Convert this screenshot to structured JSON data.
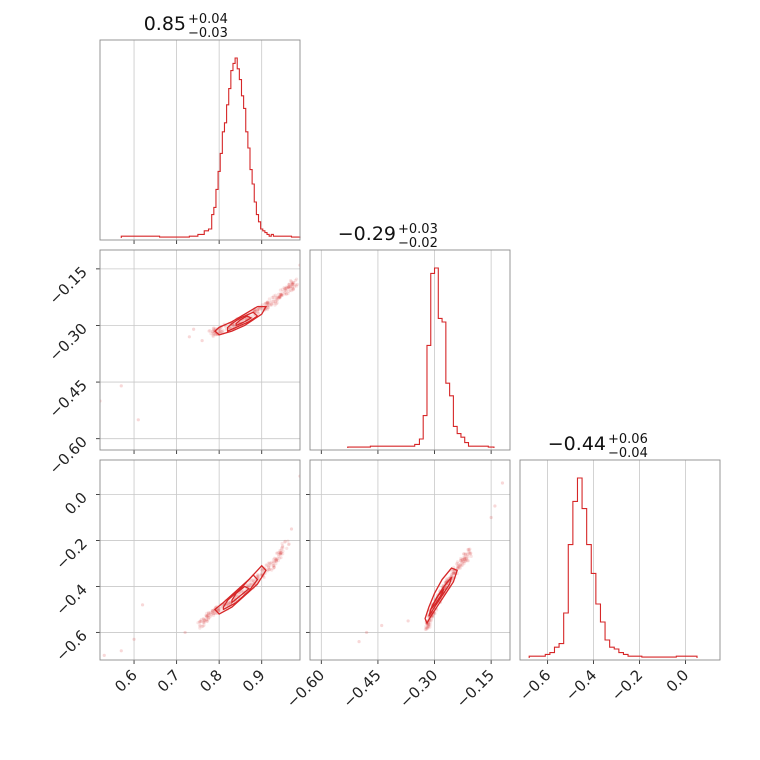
{
  "chart_data": {
    "type": "corner",
    "color": "#d62728",
    "parameters": [
      {
        "range": [
          0.52,
          0.99
        ],
        "ticks": [
          0.6,
          0.7,
          0.8,
          0.9
        ],
        "tick_labels": [
          "0.6",
          "0.7",
          "0.8",
          "0.9"
        ],
        "title": {
          "median": "0.85",
          "plus": "+0.04",
          "minus": "−0.03"
        },
        "hist": {
          "centers": [
            0.58,
            0.6,
            0.62,
            0.7,
            0.72,
            0.74,
            0.76,
            0.77,
            0.78,
            0.785,
            0.79,
            0.795,
            0.8,
            0.805,
            0.81,
            0.815,
            0.82,
            0.825,
            0.83,
            0.835,
            0.84,
            0.845,
            0.85,
            0.855,
            0.86,
            0.865,
            0.87,
            0.875,
            0.88,
            0.885,
            0.89,
            0.895,
            0.9,
            0.905,
            0.91,
            0.915,
            0.92,
            0.925,
            0.93,
            0.94,
            0.96,
            0.98
          ],
          "values": [
            0.01,
            0.01,
            0.01,
            0.005,
            0.005,
            0.01,
            0.02,
            0.04,
            0.05,
            0.13,
            0.17,
            0.27,
            0.37,
            0.47,
            0.59,
            0.64,
            0.74,
            0.83,
            0.93,
            0.97,
            1.0,
            0.94,
            0.88,
            0.79,
            0.72,
            0.59,
            0.5,
            0.38,
            0.3,
            0.2,
            0.13,
            0.09,
            0.05,
            0.04,
            0.03,
            0.02,
            0.01,
            0.02,
            0.01,
            0.01,
            0.01,
            0.005
          ]
        }
      },
      {
        "range": [
          -0.63,
          -0.1
        ],
        "ticks": [
          -0.6,
          -0.45,
          -0.3,
          -0.15
        ],
        "tick_labels": [
          "−0.60",
          "−0.45",
          "−0.30",
          "−0.15"
        ],
        "title": {
          "median": "−0.29",
          "plus": "+0.03",
          "minus": "−0.02"
        },
        "hist": {
          "centers": [
            -0.5,
            -0.44,
            -0.36,
            -0.345,
            -0.335,
            -0.325,
            -0.315,
            -0.305,
            -0.295,
            -0.285,
            -0.275,
            -0.265,
            -0.255,
            -0.245,
            -0.235,
            -0.225,
            -0.215,
            -0.205,
            -0.185,
            -0.165,
            -0.15
          ],
          "values": [
            0.005,
            0.01,
            0.01,
            0.02,
            0.05,
            0.18,
            0.57,
            0.97,
            1.0,
            0.72,
            0.7,
            0.36,
            0.29,
            0.12,
            0.08,
            0.06,
            0.03,
            0.01,
            0.01,
            0.01,
            0.005
          ]
        }
      },
      {
        "range": [
          -0.72,
          0.15
        ],
        "ticks": [
          -0.6,
          -0.4,
          -0.2,
          0.0
        ],
        "tick_labels": [
          "−0.6",
          "−0.4",
          "−0.2",
          "0.0"
        ],
        "title": {
          "median": "−0.44",
          "plus": "+0.06",
          "minus": "−0.04"
        },
        "hist": {
          "centers": [
            -0.66,
            -0.62,
            -0.6,
            -0.58,
            -0.56,
            -0.54,
            -0.52,
            -0.5,
            -0.48,
            -0.46,
            -0.44,
            -0.42,
            -0.4,
            -0.38,
            -0.36,
            -0.34,
            -0.32,
            -0.3,
            -0.28,
            -0.26,
            -0.24,
            -0.22,
            -0.2,
            -0.18,
            -0.1,
            0.02,
            0.04
          ],
          "values": [
            0.01,
            0.01,
            0.02,
            0.03,
            0.06,
            0.08,
            0.25,
            0.63,
            0.87,
            1.0,
            0.83,
            0.63,
            0.47,
            0.3,
            0.2,
            0.1,
            0.06,
            0.05,
            0.03,
            0.02,
            0.01,
            0.01,
            0.01,
            0.005,
            0.005,
            0.01,
            0.01
          ]
        }
      }
    ],
    "panels": [
      {
        "kind": "hist",
        "row": 0,
        "col": 0
      },
      {
        "kind": "scatter",
        "row": 1,
        "col": 0,
        "x": 0,
        "y": 1,
        "ridge": [
          [
            0.78,
            -0.32
          ],
          [
            0.81,
            -0.31
          ],
          [
            0.84,
            -0.295
          ],
          [
            0.87,
            -0.275
          ],
          [
            0.9,
            -0.255
          ],
          [
            0.93,
            -0.235
          ],
          [
            0.96,
            -0.205
          ],
          [
            0.98,
            -0.185
          ]
        ],
        "contours": [
          {
            "x": [
              0.8,
              0.83,
              0.86,
              0.88,
              0.9,
              0.91,
              0.89,
              0.86,
              0.83,
              0.8,
              0.79
            ],
            "y": [
              -0.325,
              -0.315,
              -0.3,
              -0.285,
              -0.27,
              -0.25,
              -0.25,
              -0.27,
              -0.29,
              -0.305,
              -0.315
            ]
          },
          {
            "x": [
              0.82,
              0.84,
              0.87,
              0.89,
              0.88,
              0.85,
              0.83,
              0.82
            ],
            "y": [
              -0.315,
              -0.305,
              -0.29,
              -0.275,
              -0.265,
              -0.28,
              -0.295,
              -0.305
            ]
          },
          {
            "x": [
              0.84,
              0.86,
              0.875,
              0.865,
              0.85,
              0.84
            ],
            "y": [
              -0.3,
              -0.29,
              -0.28,
              -0.275,
              -0.285,
              -0.295
            ]
          }
        ],
        "outliers": [
          [
            0.52,
            -0.5
          ],
          [
            0.57,
            -0.46
          ],
          [
            0.61,
            -0.55
          ],
          [
            0.73,
            -0.33
          ],
          [
            0.74,
            -0.31
          ],
          [
            0.76,
            -0.34
          ],
          [
            0.99,
            -0.14
          ]
        ]
      },
      {
        "kind": "hist",
        "row": 1,
        "col": 1
      },
      {
        "kind": "scatter",
        "row": 2,
        "col": 0,
        "x": 0,
        "y": 2,
        "ridge": [
          [
            0.75,
            -0.57
          ],
          [
            0.78,
            -0.52
          ],
          [
            0.81,
            -0.49
          ],
          [
            0.84,
            -0.45
          ],
          [
            0.87,
            -0.4
          ],
          [
            0.9,
            -0.35
          ],
          [
            0.93,
            -0.29
          ],
          [
            0.96,
            -0.21
          ]
        ],
        "contours": [
          {
            "x": [
              0.8,
              0.83,
              0.86,
              0.89,
              0.91,
              0.9,
              0.87,
              0.84,
              0.81,
              0.79
            ],
            "y": [
              -0.52,
              -0.49,
              -0.44,
              -0.39,
              -0.33,
              -0.31,
              -0.37,
              -0.42,
              -0.47,
              -0.5
            ]
          },
          {
            "x": [
              0.81,
              0.84,
              0.87,
              0.89,
              0.88,
              0.85,
              0.82,
              0.81
            ],
            "y": [
              -0.5,
              -0.47,
              -0.42,
              -0.37,
              -0.35,
              -0.41,
              -0.46,
              -0.49
            ]
          },
          {
            "x": [
              0.83,
              0.85,
              0.87,
              0.86,
              0.84,
              0.83
            ],
            "y": [
              -0.47,
              -0.44,
              -0.41,
              -0.4,
              -0.43,
              -0.46
            ]
          }
        ],
        "outliers": [
          [
            0.53,
            -0.7
          ],
          [
            0.57,
            -0.68
          ],
          [
            0.6,
            -0.63
          ],
          [
            0.62,
            -0.48
          ],
          [
            0.72,
            -0.6
          ],
          [
            0.99,
            0.08
          ],
          [
            0.97,
            -0.15
          ]
        ]
      },
      {
        "kind": "scatter",
        "row": 2,
        "col": 1,
        "x": 1,
        "y": 2,
        "ridge": [
          [
            -0.32,
            -0.58
          ],
          [
            -0.31,
            -0.53
          ],
          [
            -0.3,
            -0.49
          ],
          [
            -0.29,
            -0.45
          ],
          [
            -0.275,
            -0.41
          ],
          [
            -0.26,
            -0.37
          ],
          [
            -0.245,
            -0.33
          ],
          [
            -0.225,
            -0.29
          ],
          [
            -0.205,
            -0.25
          ]
        ],
        "contours": [
          {
            "x": [
              -0.32,
              -0.31,
              -0.29,
              -0.27,
              -0.25,
              -0.24,
              -0.255,
              -0.28,
              -0.3,
              -0.315,
              -0.325
            ],
            "y": [
              -0.56,
              -0.53,
              -0.48,
              -0.43,
              -0.38,
              -0.33,
              -0.32,
              -0.37,
              -0.43,
              -0.49,
              -0.54
            ]
          },
          {
            "x": [
              -0.315,
              -0.3,
              -0.28,
              -0.26,
              -0.255,
              -0.275,
              -0.295,
              -0.31,
              -0.315
            ],
            "y": [
              -0.53,
              -0.49,
              -0.44,
              -0.39,
              -0.36,
              -0.4,
              -0.45,
              -0.5,
              -0.53
            ]
          },
          {
            "x": [
              -0.31,
              -0.295,
              -0.28,
              -0.275,
              -0.29,
              -0.305,
              -0.31
            ],
            "y": [
              -0.5,
              -0.47,
              -0.43,
              -0.41,
              -0.44,
              -0.48,
              -0.5
            ]
          }
        ],
        "outliers": [
          [
            -0.5,
            -0.64
          ],
          [
            -0.48,
            -0.6
          ],
          [
            -0.44,
            -0.57
          ],
          [
            -0.37,
            -0.55
          ],
          [
            -0.14,
            -0.05
          ],
          [
            -0.12,
            0.05
          ],
          [
            -0.15,
            -0.1
          ]
        ]
      },
      {
        "kind": "hist",
        "row": 2,
        "col": 2
      }
    ]
  }
}
